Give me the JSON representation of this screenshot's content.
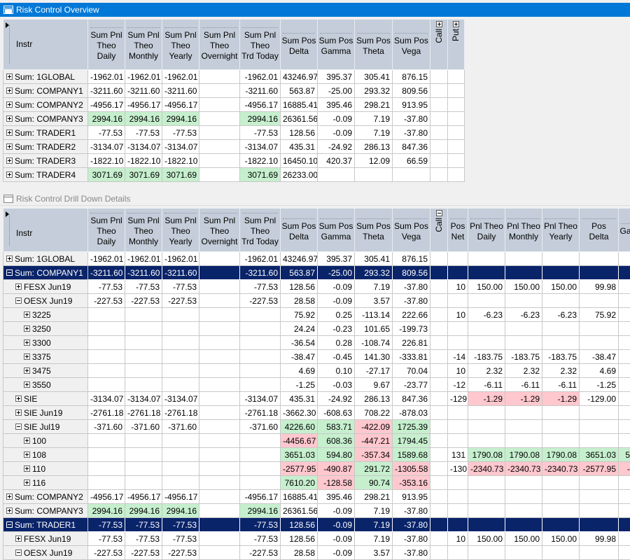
{
  "top_window": {
    "title": "Risk Control Overview",
    "instr_header": "Instr",
    "columns": [
      [
        "Sum Pnl",
        "Theo",
        "Daily"
      ],
      [
        "Sum Pnl",
        "Theo",
        "Monthly"
      ],
      [
        "Sum Pnl",
        "Theo",
        "Yearly"
      ],
      [
        "Sum Pnl",
        "Theo",
        "Overnight"
      ],
      [
        "Sum Pnl",
        "Theo",
        "Trd Today"
      ],
      [
        "Sum Pos",
        "Delta"
      ],
      [
        "Sum Pos",
        "Gamma"
      ],
      [
        "Sum Pos",
        "Theta"
      ],
      [
        "Sum Pos",
        "Vega"
      ]
    ],
    "call_label": "Call",
    "put_label": "Put",
    "rows": [
      {
        "label": "Sum: 1GLOBAL",
        "d": "-1962.01",
        "m": "-1962.01",
        "y": "-1962.01",
        "o": "",
        "t": "-1962.01",
        "delta": "43246.97",
        "gamma": "395.37",
        "theta": "305.41",
        "vega": "876.15"
      },
      {
        "label": "Sum: COMPANY1",
        "d": "-3211.60",
        "m": "-3211.60",
        "y": "-3211.60",
        "o": "",
        "t": "-3211.60",
        "delta": "563.87",
        "gamma": "-25.00",
        "theta": "293.32",
        "vega": "809.56"
      },
      {
        "label": "Sum: COMPANY2",
        "d": "-4956.17",
        "m": "-4956.17",
        "y": "-4956.17",
        "o": "",
        "t": "-4956.17",
        "delta": "16885.41",
        "gamma": "395.46",
        "theta": "298.21",
        "vega": "913.95"
      },
      {
        "label": "Sum: COMPANY3",
        "d": "2994.16",
        "m": "2994.16",
        "y": "2994.16",
        "o": "",
        "t": "2994.16",
        "delta": "26361.56",
        "gamma": "-0.09",
        "theta": "7.19",
        "vega": "-37.80"
      },
      {
        "label": "Sum: TRADER1",
        "d": "-77.53",
        "m": "-77.53",
        "y": "-77.53",
        "o": "",
        "t": "-77.53",
        "delta": "128.56",
        "gamma": "-0.09",
        "theta": "7.19",
        "vega": "-37.80"
      },
      {
        "label": "Sum: TRADER2",
        "d": "-3134.07",
        "m": "-3134.07",
        "y": "-3134.07",
        "o": "",
        "t": "-3134.07",
        "delta": "435.31",
        "gamma": "-24.92",
        "theta": "286.13",
        "vega": "847.36"
      },
      {
        "label": "Sum: TRADER3",
        "d": "-1822.10",
        "m": "-1822.10",
        "y": "-1822.10",
        "o": "",
        "t": "-1822.10",
        "delta": "16450.10",
        "gamma": "420.37",
        "theta": "12.09",
        "vega": "66.59"
      },
      {
        "label": "Sum: TRADER4",
        "d": "3071.69",
        "m": "3071.69",
        "y": "3071.69",
        "o": "",
        "t": "3071.69",
        "delta": "26233.00",
        "gamma": "",
        "theta": "",
        "vega": ""
      }
    ]
  },
  "bottom_window": {
    "title": "Risk Control Drill Down Details",
    "instr_header": "Instr",
    "columns": [
      [
        "Sum Pnl",
        "Theo",
        "Daily"
      ],
      [
        "Sum Pnl",
        "Theo",
        "Monthly"
      ],
      [
        "Sum Pnl",
        "Theo",
        "Yearly"
      ],
      [
        "Sum Pnl",
        "Theo",
        "Overnight"
      ],
      [
        "Sum Pnl",
        "Theo",
        "Trd Today"
      ],
      [
        "Sum Pos",
        "Delta"
      ],
      [
        "Sum Pos",
        "Gamma"
      ],
      [
        "Sum Pos",
        "Theta"
      ],
      [
        "Sum Pos",
        "Vega"
      ]
    ],
    "call_label": "Call",
    "call_columns": [
      [
        "Pos",
        "Net"
      ],
      [
        "Pnl Theo",
        "Daily"
      ],
      [
        "Pnl Theo",
        "Monthly"
      ],
      [
        "Pnl Theo",
        "Yearly"
      ],
      [
        "Pos",
        "Delta"
      ],
      [
        "Ga"
      ]
    ],
    "rows": [
      {
        "label": "Sum: 1GLOBAL",
        "level": 0,
        "exp": "plus",
        "d": "-1962.01",
        "m": "-1962.01",
        "y": "-1962.01",
        "o": "",
        "t": "-1962.01",
        "delta": "43246.97",
        "gamma": "395.37",
        "theta": "305.41",
        "vega": "876.15",
        "pn": "",
        "cd": "",
        "cm": "",
        "cy": "",
        "cdel": "",
        "cg": ""
      },
      {
        "label": "Sum: COMPANY1",
        "level": 0,
        "exp": "minus",
        "sel": true,
        "d": "-3211.60",
        "m": "-3211.60",
        "y": "-3211.60",
        "o": "",
        "t": "-3211.60",
        "delta": "563.87",
        "gamma": "-25.00",
        "theta": "293.32",
        "vega": "809.56",
        "pn": "",
        "cd": "",
        "cm": "",
        "cy": "",
        "cdel": "",
        "cg": ""
      },
      {
        "label": "FESX Jun19",
        "level": 1,
        "exp": "plus",
        "d": "-77.53",
        "m": "-77.53",
        "y": "-77.53",
        "o": "",
        "t": "-77.53",
        "delta": "128.56",
        "gamma": "-0.09",
        "theta": "7.19",
        "vega": "-37.80",
        "pn": "10",
        "cd": "150.00",
        "cm": "150.00",
        "cy": "150.00",
        "cdel": "99.98",
        "cg": ""
      },
      {
        "label": "OESX Jun19",
        "level": 1,
        "exp": "minus",
        "d": "-227.53",
        "m": "-227.53",
        "y": "-227.53",
        "o": "",
        "t": "-227.53",
        "delta": "28.58",
        "gamma": "-0.09",
        "theta": "3.57",
        "vega": "-37.80",
        "pn": "",
        "cd": "",
        "cm": "",
        "cy": "",
        "cdel": "",
        "cg": ""
      },
      {
        "label": "3225",
        "level": 2,
        "exp": "plus",
        "d": "",
        "m": "",
        "y": "",
        "o": "",
        "t": "",
        "delta": "75.92",
        "gamma": "0.25",
        "theta": "-113.14",
        "vega": "222.66",
        "pn": "10",
        "cd": "-6.23",
        "cm": "-6.23",
        "cy": "-6.23",
        "cdel": "75.92",
        "cg": ""
      },
      {
        "label": "3250",
        "level": 2,
        "exp": "plus",
        "d": "",
        "m": "",
        "y": "",
        "o": "",
        "t": "",
        "delta": "24.24",
        "gamma": "-0.23",
        "theta": "101.65",
        "vega": "-199.73",
        "pn": "",
        "cd": "",
        "cm": "",
        "cy": "",
        "cdel": "",
        "cg": ""
      },
      {
        "label": "3300",
        "level": 2,
        "exp": "plus",
        "d": "",
        "m": "",
        "y": "",
        "o": "",
        "t": "",
        "delta": "-36.54",
        "gamma": "0.28",
        "theta": "-108.74",
        "vega": "226.81",
        "pn": "",
        "cd": "",
        "cm": "",
        "cy": "",
        "cdel": "",
        "cg": ""
      },
      {
        "label": "3375",
        "level": 2,
        "exp": "plus",
        "d": "",
        "m": "",
        "y": "",
        "o": "",
        "t": "",
        "delta": "-38.47",
        "gamma": "-0.45",
        "theta": "141.30",
        "vega": "-333.81",
        "pn": "-14",
        "cd": "-183.75",
        "cm": "-183.75",
        "cy": "-183.75",
        "cdel": "-38.47",
        "cg": ""
      },
      {
        "label": "3475",
        "level": 2,
        "exp": "plus",
        "d": "",
        "m": "",
        "y": "",
        "o": "",
        "t": "",
        "delta": "4.69",
        "gamma": "0.10",
        "theta": "-27.17",
        "vega": "70.04",
        "pn": "10",
        "cd": "2.32",
        "cm": "2.32",
        "cy": "2.32",
        "cdel": "4.69",
        "cg": ""
      },
      {
        "label": "3550",
        "level": 2,
        "exp": "plus",
        "d": "",
        "m": "",
        "y": "",
        "o": "",
        "t": "",
        "delta": "-1.25",
        "gamma": "-0.03",
        "theta": "9.67",
        "vega": "-23.77",
        "pn": "-12",
        "cd": "-6.11",
        "cm": "-6.11",
        "cy": "-6.11",
        "cdel": "-1.25",
        "cg": ""
      },
      {
        "label": "SIE",
        "level": 1,
        "exp": "plus",
        "d": "-3134.07",
        "m": "-3134.07",
        "y": "-3134.07",
        "o": "",
        "t": "-3134.07",
        "delta": "435.31",
        "gamma": "-24.92",
        "theta": "286.13",
        "vega": "847.36",
        "pn": "-129",
        "cd": "-1.29",
        "cm": "-1.29",
        "cy": "-1.29",
        "cdel": "-129.00",
        "cg": ""
      },
      {
        "label": "SIE Jun19",
        "level": 1,
        "exp": "plus",
        "d": "-2761.18",
        "m": "-2761.18",
        "y": "-2761.18",
        "o": "",
        "t": "-2761.18",
        "delta": "-3662.30",
        "gamma": "-608.63",
        "theta": "708.22",
        "vega": "-878.03",
        "pn": "",
        "cd": "",
        "cm": "",
        "cy": "",
        "cdel": "",
        "cg": ""
      },
      {
        "label": "SIE Jul19",
        "level": 1,
        "exp": "minus",
        "d": "-371.60",
        "m": "-371.60",
        "y": "-371.60",
        "o": "",
        "t": "-371.60",
        "delta": "4226.60",
        "gamma": "583.71",
        "theta": "-422.09",
        "vega": "1725.39",
        "pn": "",
        "cd": "",
        "cm": "",
        "cy": "",
        "cdel": "",
        "cg": ""
      },
      {
        "label": "100",
        "level": 2,
        "exp": "plus",
        "d": "",
        "m": "",
        "y": "",
        "o": "",
        "t": "",
        "delta": "-4456.67",
        "gamma": "608.36",
        "theta": "-447.21",
        "vega": "1794.45",
        "pn": "",
        "cd": "",
        "cm": "",
        "cy": "",
        "cdel": "",
        "cg": ""
      },
      {
        "label": "108",
        "level": 2,
        "exp": "plus",
        "d": "",
        "m": "",
        "y": "",
        "o": "",
        "t": "",
        "delta": "3651.03",
        "gamma": "594.80",
        "theta": "-357.34",
        "vega": "1589.68",
        "pn": "131",
        "cd": "1790.08",
        "cm": "1790.08",
        "cy": "1790.08",
        "cdel": "3651.03",
        "cg": "5"
      },
      {
        "label": "110",
        "level": 2,
        "exp": "plus",
        "d": "",
        "m": "",
        "y": "",
        "o": "",
        "t": "",
        "delta": "-2577.95",
        "gamma": "-490.87",
        "theta": "291.72",
        "vega": "-1305.58",
        "pn": "-130",
        "cd": "-2340.73",
        "cm": "-2340.73",
        "cy": "-2340.73",
        "cdel": "-2577.95",
        "cg": "-"
      },
      {
        "label": "116",
        "level": 2,
        "exp": "plus",
        "d": "",
        "m": "",
        "y": "",
        "o": "",
        "t": "",
        "delta": "7610.20",
        "gamma": "-128.58",
        "theta": "90.74",
        "vega": "-353.16",
        "pn": "",
        "cd": "",
        "cm": "",
        "cy": "",
        "cdel": "",
        "cg": ""
      },
      {
        "label": "Sum: COMPANY2",
        "level": 0,
        "exp": "plus",
        "d": "-4956.17",
        "m": "-4956.17",
        "y": "-4956.17",
        "o": "",
        "t": "-4956.17",
        "delta": "16885.41",
        "gamma": "395.46",
        "theta": "298.21",
        "vega": "913.95",
        "pn": "",
        "cd": "",
        "cm": "",
        "cy": "",
        "cdel": "",
        "cg": ""
      },
      {
        "label": "Sum: COMPANY3",
        "level": 0,
        "exp": "plus",
        "d": "2994.16",
        "m": "2994.16",
        "y": "2994.16",
        "o": "",
        "t": "2994.16",
        "delta": "26361.56",
        "gamma": "-0.09",
        "theta": "7.19",
        "vega": "-37.80",
        "pn": "",
        "cd": "",
        "cm": "",
        "cy": "",
        "cdel": "",
        "cg": ""
      },
      {
        "label": "Sum: TRADER1",
        "level": 0,
        "exp": "minus",
        "sel": true,
        "d": "-77.53",
        "m": "-77.53",
        "y": "-77.53",
        "o": "",
        "t": "-77.53",
        "delta": "128.56",
        "gamma": "-0.09",
        "theta": "7.19",
        "vega": "-37.80",
        "pn": "",
        "cd": "",
        "cm": "",
        "cy": "",
        "cdel": "",
        "cg": ""
      },
      {
        "label": "FESX Jun19",
        "level": 1,
        "exp": "plus",
        "d": "-77.53",
        "m": "-77.53",
        "y": "-77.53",
        "o": "",
        "t": "-77.53",
        "delta": "128.56",
        "gamma": "-0.09",
        "theta": "7.19",
        "vega": "-37.80",
        "pn": "10",
        "cd": "150.00",
        "cm": "150.00",
        "cy": "150.00",
        "cdel": "99.98",
        "cg": ""
      },
      {
        "label": "OESX Jun19",
        "level": 1,
        "exp": "minus",
        "d": "-227.53",
        "m": "-227.53",
        "y": "-227.53",
        "o": "",
        "t": "-227.53",
        "delta": "28.58",
        "gamma": "-0.09",
        "theta": "3.57",
        "vega": "-37.80",
        "pn": "",
        "cd": "",
        "cm": "",
        "cy": "",
        "cdel": "",
        "cg": ""
      }
    ]
  },
  "colors": {
    "positive": "#c6efce",
    "negative": "#ffc7ce",
    "selected": "#0a246a",
    "header": "#c4cdd9",
    "active_title": "#0078d7"
  }
}
